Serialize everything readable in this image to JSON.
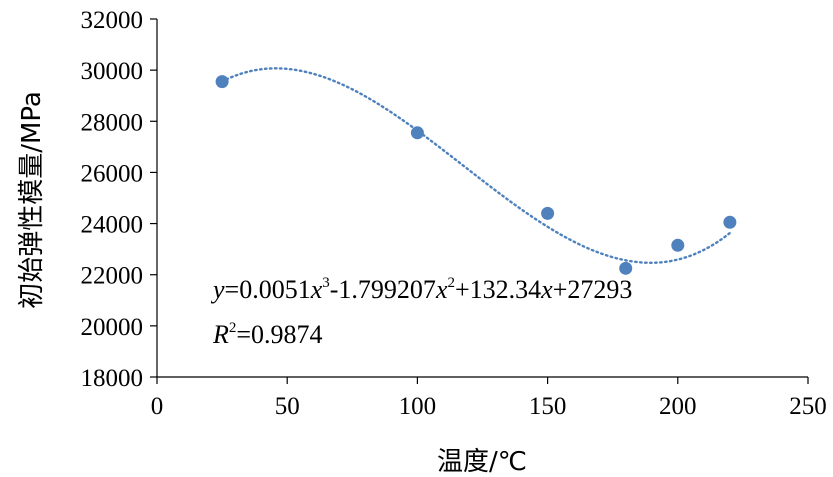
{
  "chart_data": {
    "type": "scatter",
    "xlabel": "温度/℃",
    "ylabel": "初始弹性模量/MPa",
    "xlim": [
      0,
      250
    ],
    "ylim": [
      18000,
      32000
    ],
    "xticks": [
      0,
      50,
      100,
      150,
      200,
      250
    ],
    "yticks": [
      18000,
      20000,
      22000,
      24000,
      26000,
      28000,
      30000,
      32000
    ],
    "grid": false,
    "points": [
      {
        "x": 25,
        "y": 29550
      },
      {
        "x": 100,
        "y": 27550
      },
      {
        "x": 150,
        "y": 24400
      },
      {
        "x": 180,
        "y": 22250
      },
      {
        "x": 200,
        "y": 23150
      },
      {
        "x": 220,
        "y": 24050
      }
    ],
    "trendline": {
      "type": "polynomial",
      "order": 3,
      "coefficients": [
        0.0051,
        -1.799207,
        132.34,
        27293
      ],
      "x_range": [
        25,
        220
      ],
      "style": "dotted"
    },
    "equation": {
      "y_var": "y",
      "part1": "=0.0051",
      "x_var1": "x",
      "exp1": "3",
      "part2": "-1.799207",
      "x_var2": "x",
      "exp2": "2",
      "part3": "+132.34",
      "x_var3": "x",
      "part4": "+27293"
    },
    "r_squared": {
      "r_var": "R",
      "exp": "2",
      "value": "=0.9874"
    },
    "colors": {
      "point": "#4f81bd",
      "trendline": "#4f81bd",
      "axis": "#000000"
    }
  }
}
